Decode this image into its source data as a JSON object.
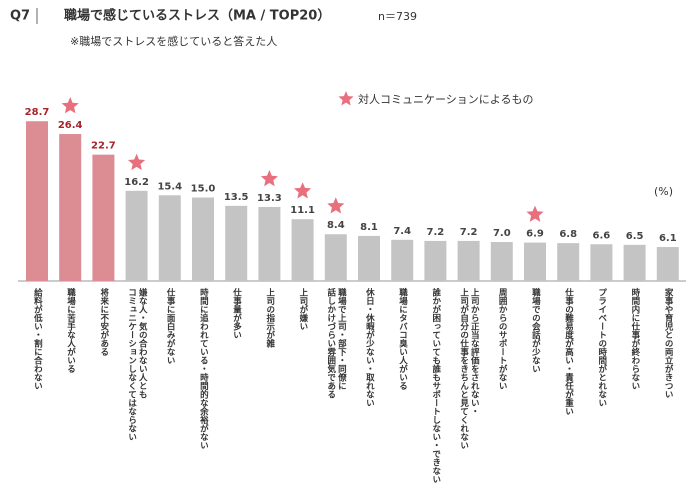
{
  "chart_data": {
    "type": "bar",
    "question": "Q7",
    "title": "職場で感じているストレス（MA / TOP20）",
    "sample": "n＝739",
    "subtitle": "※職場でストレスを感じていると答えた人",
    "unit_label": "(%)",
    "legend_label": "対人コミュニケーションによるもの",
    "star_color": "#e8707e",
    "highlight_color": "#dc8c93",
    "color": "#c4c4c4",
    "highlight_label_color": "#a8232a",
    "label_color": "#444444",
    "highlight_count": 3,
    "categories": [
      "給料が低い・割に合わない",
      "職場に苦手な人がいる",
      "将来に不安がある",
      "嫌な人・気の合わない人とも\nコミュニケーションしなくてはならない",
      "仕事に面白みがない",
      "時間に追われている・時間的な余裕がない",
      "仕事量が多い",
      "上司の指示が雑",
      "上司が嫌い",
      "職場で上司・部下・同僚に\n話しかけづらい雰囲気である",
      "休日・休暇が少ない・取れない",
      "職場にタバコ臭い人がいる",
      "誰かが困っていても誰もサポートしない・できない",
      "上司から正当な評価をされない・\n上司が自分の仕事をきちんと見てくれない",
      "周囲からのサポートがない",
      "職場での会話が少ない",
      "仕事の難易度が高い・責任が重い",
      "プライベートの時間がとれない",
      "時間内に仕事が終わらない",
      "家事や育児との両立がきつい"
    ],
    "values": [
      28.7,
      26.4,
      22.7,
      16.2,
      15.4,
      15.0,
      13.5,
      13.3,
      11.1,
      8.4,
      8.1,
      7.4,
      7.2,
      7.2,
      7.0,
      6.9,
      6.8,
      6.6,
      6.5,
      6.1
    ],
    "value_labels": [
      "28.7",
      "26.4",
      "22.7",
      "16.2",
      "15.4",
      "15.0",
      "13.5",
      "13.3",
      "11.1",
      "8.4",
      "8.1",
      "7.4",
      "7.2",
      "7.2",
      "7.0",
      "6.9",
      "6.8",
      "6.6",
      "6.5",
      "6.1"
    ],
    "starred": [
      false,
      true,
      false,
      true,
      false,
      false,
      false,
      true,
      true,
      true,
      false,
      false,
      false,
      false,
      false,
      true,
      false,
      false,
      false,
      false
    ],
    "ylim": [
      0,
      30
    ]
  }
}
